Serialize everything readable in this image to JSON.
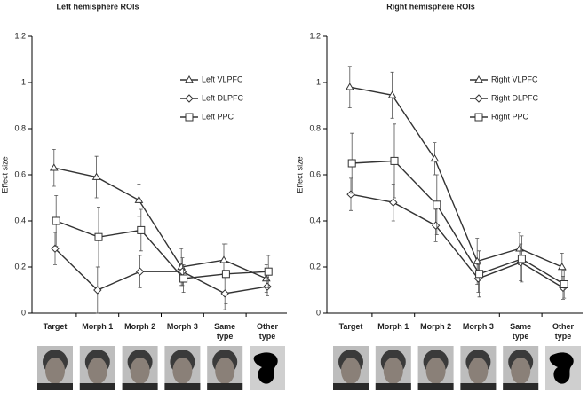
{
  "chart_data": [
    {
      "type": "line",
      "title": "Left hemisphere ROIs",
      "y_label": "Effect size",
      "categories": [
        "Target",
        "Morph 1",
        "Morph 2",
        "Morph 3",
        "Same type",
        "Other type"
      ],
      "ylim": [
        0,
        1.2
      ],
      "yticks": [
        0,
        0.2,
        0.4,
        0.6,
        0.8,
        1,
        1.2
      ],
      "series": [
        {
          "name": "Left VLPFC",
          "color": "#333333",
          "marker": "triangle",
          "values": [
            0.63,
            0.59,
            0.49,
            0.2,
            0.23,
            0.15
          ],
          "errors": [
            0.08,
            0.09,
            0.07,
            0.08,
            0.07,
            0.06
          ]
        },
        {
          "name": "Left DLPFC",
          "color": "#333333",
          "marker": "diamond",
          "values": [
            0.28,
            0.1,
            0.18,
            0.18,
            0.085,
            0.115
          ],
          "errors": [
            0.07,
            0.1,
            0.07,
            0.06,
            0.07,
            0.04
          ]
        },
        {
          "name": "Left PPC",
          "color": "#333333",
          "marker": "square",
          "values": [
            0.4,
            0.33,
            0.36,
            0.15,
            0.17,
            0.18
          ],
          "errors": [
            0.11,
            0.13,
            0.09,
            0.06,
            0.13,
            0.07
          ]
        }
      ]
    },
    {
      "type": "line",
      "title": "Right hemisphere ROIs",
      "y_label": "Effect size",
      "categories": [
        "Target",
        "Morph 1",
        "Morph 2",
        "Morph 3",
        "Same type",
        "Other type"
      ],
      "ylim": [
        0,
        1.2
      ],
      "yticks": [
        0,
        0.2,
        0.4,
        0.6,
        0.8,
        1,
        1.2
      ],
      "series": [
        {
          "name": "Right VLPFC",
          "color": "#333333",
          "marker": "triangle",
          "values": [
            0.98,
            0.945,
            0.67,
            0.225,
            0.28,
            0.2
          ],
          "errors": [
            0.09,
            0.1,
            0.07,
            0.1,
            0.07,
            0.06
          ]
        },
        {
          "name": "Right DLPFC",
          "color": "#333333",
          "marker": "diamond",
          "values": [
            0.515,
            0.48,
            0.38,
            0.15,
            0.22,
            0.11
          ],
          "errors": [
            0.07,
            0.08,
            0.07,
            0.06,
            0.08,
            0.05
          ]
        },
        {
          "name": "Right PPC",
          "color": "#333333",
          "marker": "square",
          "values": [
            0.65,
            0.66,
            0.47,
            0.17,
            0.235,
            0.125
          ],
          "errors": [
            0.13,
            0.16,
            0.13,
            0.1,
            0.1,
            0.06
          ]
        }
      ]
    }
  ]
}
